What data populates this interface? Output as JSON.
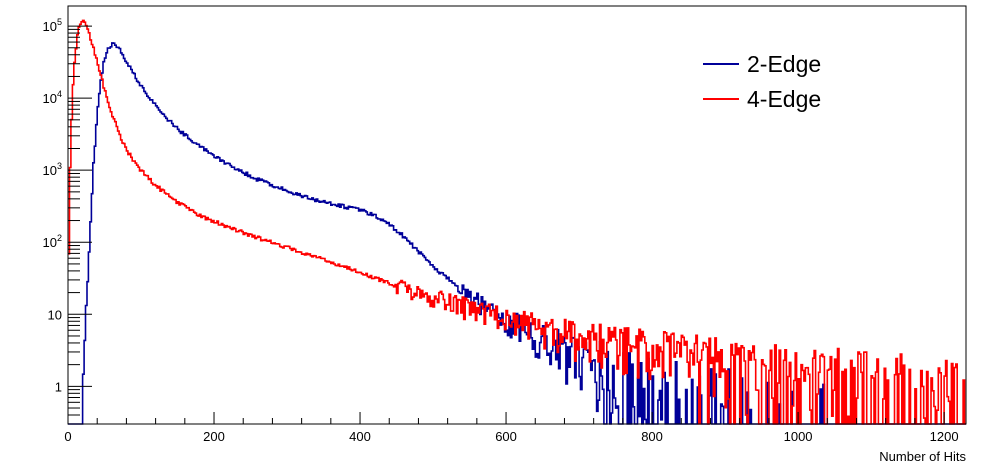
{
  "chart_data": {
    "type": "line",
    "title": "",
    "xlabel": "Number of Hits",
    "ylabel": "",
    "xlim": [
      0,
      1230
    ],
    "ylim": [
      0.3,
      190000
    ],
    "yscale": "log",
    "grid": false,
    "legend_position": "top-right",
    "x_ticks": [
      "0",
      "200",
      "400",
      "600",
      "800",
      "1000",
      "1200"
    ],
    "y_ticks": [
      {
        "value": 1,
        "label": "1"
      },
      {
        "value": 10,
        "label": "10"
      },
      {
        "value": 100,
        "base": "10",
        "exp": "2"
      },
      {
        "value": 1000,
        "base": "10",
        "exp": "3"
      },
      {
        "value": 10000,
        "base": "10",
        "exp": "4"
      },
      {
        "value": 100000,
        "base": "10",
        "exp": "5"
      }
    ],
    "series": [
      {
        "name": "2-Edge",
        "color": "#000099",
        "style": "step",
        "x": [
          0,
          15,
          20,
          25,
          30,
          35,
          40,
          45,
          50,
          55,
          60,
          65,
          70,
          80,
          90,
          100,
          120,
          140,
          160,
          180,
          200,
          230,
          260,
          300,
          340,
          380,
          400,
          420,
          440,
          460,
          480,
          500,
          520,
          540,
          560,
          580,
          600,
          620,
          640,
          660,
          680,
          700,
          720,
          740,
          760,
          780,
          800,
          850,
          900,
          950,
          1000,
          1050,
          1100,
          1150,
          1200,
          1230
        ],
        "values": [
          0.3,
          0.3,
          0.7,
          10,
          120,
          1200,
          6000,
          18000,
          35000,
          48000,
          56000,
          54000,
          48000,
          33000,
          22000,
          14500,
          7800,
          4700,
          3100,
          2200,
          1600,
          1050,
          740,
          520,
          380,
          310,
          280,
          240,
          180,
          120,
          75,
          45,
          32,
          22,
          16,
          12,
          9,
          7,
          5,
          4,
          3.5,
          3,
          2.5,
          2,
          1.6,
          1.4,
          1.2,
          1,
          0.8,
          0.7,
          0.6,
          0.5,
          0.45,
          0.4,
          0.35,
          0.3
        ]
      },
      {
        "name": "4-Edge",
        "color": "#ff0000",
        "style": "step",
        "x": [
          0,
          2,
          5,
          8,
          12,
          16,
          20,
          24,
          28,
          32,
          36,
          40,
          45,
          50,
          60,
          70,
          80,
          100,
          120,
          140,
          160,
          180,
          200,
          230,
          260,
          300,
          340,
          380,
          420,
          460,
          500,
          550,
          600,
          650,
          700,
          750,
          800,
          850,
          900,
          950,
          1000,
          1050,
          1100,
          1150,
          1200,
          1230
        ],
        "values": [
          10,
          500,
          5000,
          25000,
          65000,
          105000,
          120000,
          110000,
          85000,
          62000,
          45000,
          32000,
          21000,
          13000,
          6200,
          3200,
          1900,
          1000,
          620,
          420,
          310,
          240,
          195,
          150,
          115,
          85,
          62,
          45,
          32,
          23,
          17,
          12,
          9,
          6.5,
          5,
          4.2,
          3.6,
          3.1,
          2.6,
          2.2,
          1.9,
          1.7,
          1.5,
          1.3,
          1.1,
          1
        ]
      }
    ]
  }
}
